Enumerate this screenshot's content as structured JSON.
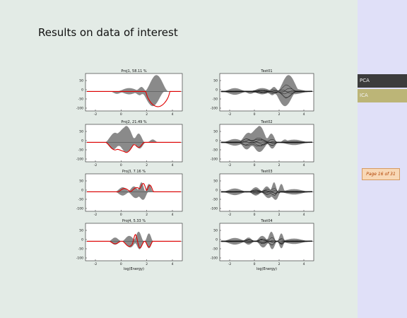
{
  "slide": {
    "title": "Results on data of interest"
  },
  "sidebar": {
    "items": [
      {
        "label": "PCA"
      },
      {
        "label": "ICA"
      }
    ]
  },
  "page_indicator": "Page 16 of 31",
  "left_column": {
    "panels": [
      {
        "title": "Proj1, 58.11 %",
        "yticks": [
          "50",
          "0",
          "-50",
          "-100"
        ]
      },
      {
        "title": "Proj2, 21.49 %",
        "yticks": [
          "50",
          "0",
          "-50",
          "-100"
        ]
      },
      {
        "title": "Proj3, 7.16 %",
        "yticks": [
          "50",
          "0",
          "-50",
          "-100"
        ]
      },
      {
        "title": "Proj4, 5.33 %",
        "yticks": [
          "50",
          "0",
          "-50",
          "-100"
        ]
      }
    ],
    "xticks": [
      "-2",
      "0",
      "2",
      "4"
    ],
    "xlabel": "log(Energy)"
  },
  "right_column": {
    "panels": [
      {
        "title": "Test01",
        "yticks": [
          "50",
          "0",
          "-50",
          "-100"
        ]
      },
      {
        "title": "Test02",
        "yticks": [
          "50",
          "0",
          "-50",
          "-100"
        ]
      },
      {
        "title": "Test03",
        "yticks": [
          "50",
          "0",
          "-50",
          "-100"
        ]
      },
      {
        "title": "Test04",
        "yticks": [
          "50",
          "0",
          "-50",
          "-100"
        ]
      }
    ],
    "xticks": [
      "-2",
      "0",
      "2",
      "4"
    ],
    "xlabel": "log(Energy)"
  },
  "colors": {
    "band": "#8a8a8a",
    "projection_line": "#e00000",
    "test_lines": "#111111"
  }
}
